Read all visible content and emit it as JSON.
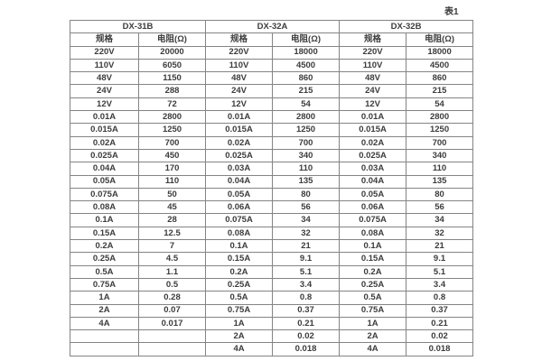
{
  "page": {
    "caption": "表1"
  },
  "table": {
    "groups": [
      {
        "name": "DX-31B",
        "spec_header": "规格",
        "resistance_header": "电阻(Ω)"
      },
      {
        "name": "DX-32A",
        "spec_header": "规格",
        "resistance_header": "电阻(Ω)"
      },
      {
        "name": "DX-32B",
        "spec_header": "规格",
        "resistance_header": "电阻(Ω)"
      }
    ],
    "rows": [
      [
        "220V",
        "20000",
        "220V",
        "18000",
        "220V",
        "18000"
      ],
      [
        "110V",
        "6050",
        "110V",
        "4500",
        "110V",
        "4500"
      ],
      [
        "48V",
        "1150",
        "48V",
        "860",
        "48V",
        "860"
      ],
      [
        "24V",
        "288",
        "24V",
        "215",
        "24V",
        "215"
      ],
      [
        "12V",
        "72",
        "12V",
        "54",
        "12V",
        "54"
      ],
      [
        "0.01A",
        "2800",
        "0.01A",
        "2800",
        "0.01A",
        "2800"
      ],
      [
        "0.015A",
        "1250",
        "0.015A",
        "1250",
        "0.015A",
        "1250"
      ],
      [
        "0.02A",
        "700",
        "0.02A",
        "700",
        "0.02A",
        "700"
      ],
      [
        "0.025A",
        "450",
        "0.025A",
        "340",
        "0.025A",
        "340"
      ],
      [
        "0.04A",
        "170",
        "0.03A",
        "110",
        "0.03A",
        "110"
      ],
      [
        "0.05A",
        "110",
        "0.04A",
        "135",
        "0.04A",
        "135"
      ],
      [
        "0.075A",
        "50",
        "0.05A",
        "80",
        "0.05A",
        "80"
      ],
      [
        "0.08A",
        "45",
        "0.06A",
        "56",
        "0.06A",
        "56"
      ],
      [
        "0.1A",
        "28",
        "0.075A",
        "34",
        "0.075A",
        "34"
      ],
      [
        "0.15A",
        "12.5",
        "0.08A",
        "32",
        "0.08A",
        "32"
      ],
      [
        "0.2A",
        "7",
        "0.1A",
        "21",
        "0.1A",
        "21"
      ],
      [
        "0.25A",
        "4.5",
        "0.15A",
        "9.1",
        "0.15A",
        "9.1"
      ],
      [
        "0.5A",
        "1.1",
        "0.2A",
        "5.1",
        "0.2A",
        "5.1"
      ],
      [
        "0.75A",
        "0.5",
        "0.25A",
        "3.4",
        "0.25A",
        "3.4"
      ],
      [
        "1A",
        "0.28",
        "0.5A",
        "0.8",
        "0.5A",
        "0.8"
      ],
      [
        "2A",
        "0.07",
        "0.75A",
        "0.37",
        "0.75A",
        "0.37"
      ],
      [
        "4A",
        "0.017",
        "1A",
        "0.21",
        "1A",
        "0.21"
      ],
      [
        "",
        "",
        "2A",
        "0.02",
        "2A",
        "0.02"
      ],
      [
        "",
        "",
        "4A",
        "0.018",
        "4A",
        "0.018"
      ]
    ]
  }
}
